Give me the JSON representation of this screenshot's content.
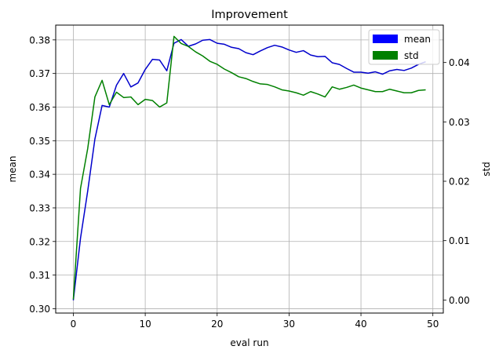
{
  "chart_data": {
    "type": "line",
    "title": "Improvement",
    "xlabel": "eval run",
    "ylabel": "mean",
    "y2label": "std",
    "xlim": [
      -2.45,
      51.45
    ],
    "ylim": [
      0.2987,
      0.3844
    ],
    "y2lim": [
      -0.0022,
      0.0463
    ],
    "xticks": [
      0,
      10,
      20,
      30,
      40,
      50
    ],
    "yticks": [
      0.3,
      0.31,
      0.32,
      0.33,
      0.34,
      0.35,
      0.36,
      0.37,
      0.38
    ],
    "y2ticks": [
      0.0,
      0.01,
      0.02,
      0.03,
      0.04
    ],
    "grid": true,
    "legend": "top-right",
    "x": [
      0,
      1,
      2,
      3,
      4,
      5,
      6,
      7,
      8,
      9,
      10,
      11,
      12,
      13,
      14,
      15,
      16,
      17,
      18,
      19,
      20,
      21,
      22,
      23,
      24,
      25,
      26,
      27,
      28,
      29,
      30,
      31,
      32,
      33,
      34,
      35,
      36,
      37,
      38,
      39,
      40,
      41,
      42,
      43,
      44,
      45,
      46,
      47,
      48,
      49
    ],
    "series": [
      {
        "name": "mean",
        "axis": "left",
        "color": "#0000cc",
        "values": [
          0.3025,
          0.321,
          0.335,
          0.3505,
          0.3605,
          0.36,
          0.3665,
          0.37,
          0.366,
          0.3672,
          0.3712,
          0.3742,
          0.374,
          0.3708,
          0.379,
          0.3801,
          0.3781,
          0.3788,
          0.3799,
          0.3801,
          0.379,
          0.3787,
          0.3778,
          0.3774,
          0.3762,
          0.3756,
          0.3767,
          0.3777,
          0.3784,
          0.3779,
          0.377,
          0.3763,
          0.3768,
          0.3755,
          0.375,
          0.3751,
          0.3732,
          0.3727,
          0.3715,
          0.3704,
          0.3704,
          0.3701,
          0.3705,
          0.3698,
          0.3708,
          0.3712,
          0.3709,
          0.3716,
          0.3727,
          0.3735
        ]
      },
      {
        "name": "std",
        "axis": "right",
        "color": "#008000",
        "values": [
          0.0001,
          0.0188,
          0.0255,
          0.0342,
          0.037,
          0.0329,
          0.035,
          0.0341,
          0.0342,
          0.0329,
          0.0338,
          0.0336,
          0.0325,
          0.0332,
          0.0444,
          0.0432,
          0.0427,
          0.0418,
          0.0411,
          0.0402,
          0.0397,
          0.0389,
          0.0383,
          0.0376,
          0.0373,
          0.0368,
          0.0364,
          0.0363,
          0.0359,
          0.0354,
          0.0352,
          0.0349,
          0.0345,
          0.0351,
          0.0347,
          0.0342,
          0.0359,
          0.0355,
          0.0358,
          0.0362,
          0.0357,
          0.0354,
          0.0351,
          0.0351,
          0.0355,
          0.0352,
          0.0349,
          0.0349,
          0.0353,
          0.0354
        ]
      }
    ]
  }
}
